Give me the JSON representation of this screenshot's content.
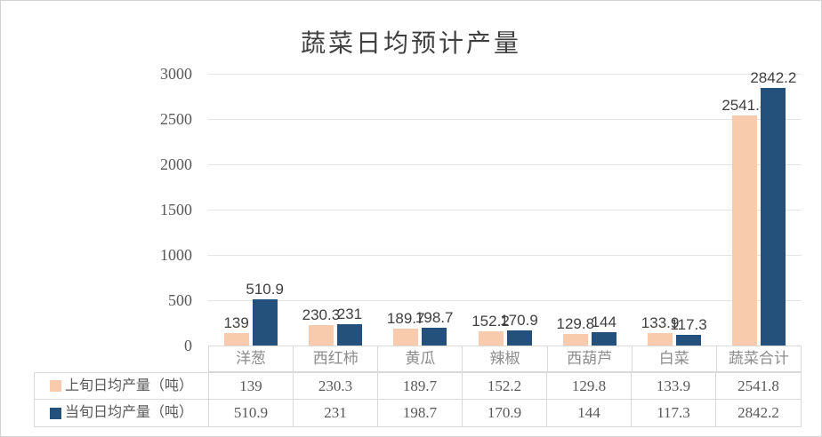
{
  "chart_data": {
    "type": "bar",
    "title": "蔬菜日均预计产量",
    "categories": [
      "洋葱",
      "西红柿",
      "黄瓜",
      "辣椒",
      "西葫芦",
      "白菜",
      "蔬菜合计"
    ],
    "series": [
      {
        "name": "上旬日均产量（吨）",
        "color": "#F8CBAD",
        "values": [
          139,
          230.3,
          189.7,
          152.2,
          129.8,
          133.9,
          2541.8
        ]
      },
      {
        "name": "当旬日均产量（吨）",
        "color": "#24507C",
        "values": [
          510.9,
          231,
          198.7,
          170.9,
          144,
          117.3,
          2842.2
        ]
      }
    ],
    "xlabel": "",
    "ylabel": "",
    "ylim": [
      0,
      3000
    ],
    "yticks": [
      0,
      500,
      1000,
      1500,
      2000,
      2500,
      3000
    ],
    "grid": true,
    "data_table": true,
    "legend_position": "data-table-left",
    "data_labels": true
  },
  "styles": {
    "title_color": "#404040",
    "tick_color": "#595959",
    "category_color": "#8C8C8C",
    "table_text_color": "#595959",
    "gridline_color": "#E4E4E4",
    "table_border_color": "#D9D9D9",
    "frame_border_color": "#D2D2D2",
    "background": "#FFFFFF"
  }
}
